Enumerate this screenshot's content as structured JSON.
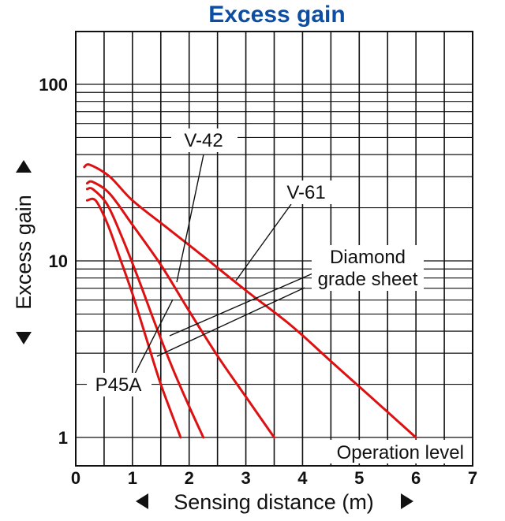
{
  "chart_data": {
    "type": "line",
    "title": "Excess gain",
    "xlabel": "Sensing distance (m)",
    "ylabel": "Excess gain",
    "x_ticks": [
      "0",
      "1",
      "2",
      "3",
      "4",
      "5",
      "6",
      "7"
    ],
    "y_ticks": [
      "1",
      "10",
      "100"
    ],
    "xlim": [
      0,
      7
    ],
    "ylim": [
      1,
      500
    ],
    "y_scale": "log",
    "grid": true,
    "annotations": {
      "operation_level": "Operation level",
      "v42": "V-42",
      "v61": "V-61",
      "diamond_line1": "Diamond",
      "diamond_line2": "grade sheet",
      "p45a": "P45A"
    },
    "series": [
      {
        "name": "V-61",
        "x": [
          0.15,
          0.25,
          0.6,
          1.0,
          1.6,
          2.3,
          3.0,
          3.8,
          4.5,
          5.2,
          6.0
        ],
        "y": [
          34,
          35,
          30,
          22,
          15.5,
          10.3,
          6.8,
          4.3,
          2.7,
          1.7,
          1
        ]
      },
      {
        "name": "V-42",
        "x": [
          0.2,
          0.3,
          0.6,
          1.0,
          1.5,
          2.0,
          2.5,
          3.0,
          3.5
        ],
        "y": [
          27.5,
          28,
          24,
          16,
          9.5,
          5.2,
          2.9,
          1.7,
          1
        ]
      },
      {
        "name": "Diamond grade sheet",
        "x": [
          0.2,
          0.3,
          0.55,
          0.8,
          1.1,
          1.4,
          1.7,
          2.0,
          2.25
        ],
        "y": [
          25.5,
          25.5,
          21,
          14,
          8,
          4.4,
          2.5,
          1.5,
          1
        ]
      },
      {
        "name": "P45A",
        "x": [
          0.2,
          0.35,
          0.55,
          0.75,
          1.0,
          1.25,
          1.5,
          1.85
        ],
        "y": [
          22,
          22,
          16.5,
          11,
          6.5,
          3.6,
          2,
          1
        ]
      }
    ],
    "colors": {
      "curve": "#dd1111",
      "title": "#0d4ea3",
      "grid": "#111111"
    }
  }
}
